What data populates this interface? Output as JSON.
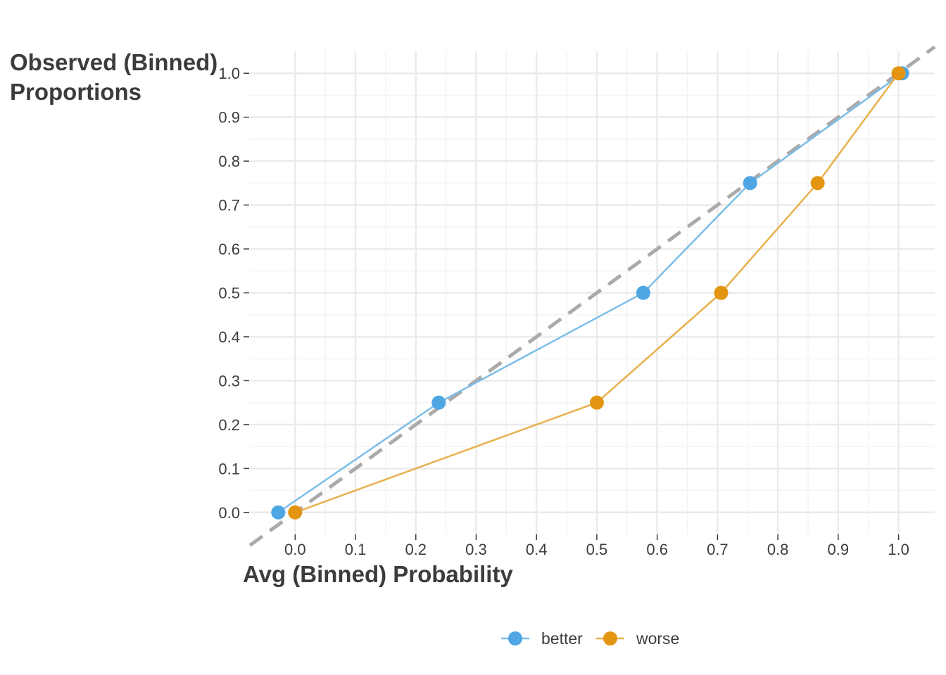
{
  "chart_data": {
    "type": "line",
    "title": "",
    "xlabel": "Avg (Binned) Probability",
    "ylabel_lines": [
      "Observed (Binned)",
      "Proportions"
    ],
    "xlim": [
      -0.075,
      1.06
    ],
    "ylim": [
      -0.05,
      1.05
    ],
    "x_ticks": [
      0.0,
      0.1,
      0.2,
      0.3,
      0.4,
      0.5,
      0.6,
      0.7,
      0.8,
      0.9,
      1.0
    ],
    "x_tick_labels": [
      "0.0",
      "0.1",
      "0.2",
      "0.3",
      "0.4",
      "0.5",
      "0.6",
      "0.7",
      "0.8",
      "0.9",
      "1.0"
    ],
    "y_ticks": [
      0.0,
      0.1,
      0.2,
      0.3,
      0.4,
      0.5,
      0.6,
      0.7,
      0.8,
      0.9,
      1.0
    ],
    "y_tick_labels": [
      "0.0",
      "0.1",
      "0.2",
      "0.3",
      "0.4",
      "0.5",
      "0.6",
      "0.7",
      "0.8",
      "0.9",
      "1.0"
    ],
    "grid": true,
    "reference_line": {
      "style": "dashed",
      "color": "#aaaaaa",
      "from": [
        -0.075,
        -0.075
      ],
      "to": [
        1.06,
        1.06
      ]
    },
    "series": [
      {
        "name": "better",
        "color": "#4ea6e3",
        "line_color": "#7bbde8",
        "x": [
          -0.028,
          0.238,
          0.577,
          0.754,
          1.006
        ],
        "y": [
          0.0,
          0.25,
          0.5,
          0.75,
          1.0
        ]
      },
      {
        "name": "worse",
        "color": "#e39512",
        "line_color": "#e8b04a",
        "x": [
          0.0,
          0.5,
          0.706,
          0.866,
          1.0
        ],
        "y": [
          0.0,
          0.25,
          0.5,
          0.75,
          1.0
        ]
      }
    ],
    "legend": {
      "position": "bottom",
      "entries": [
        "better",
        "worse"
      ]
    }
  }
}
